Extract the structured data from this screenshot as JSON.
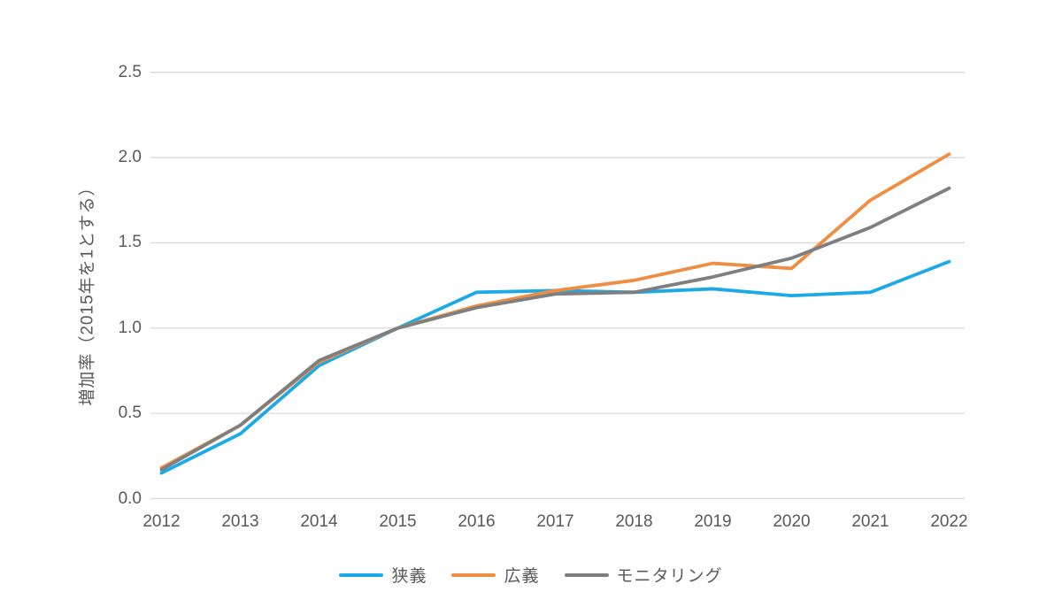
{
  "chart_data": {
    "type": "line",
    "title": "",
    "xlabel": "",
    "ylabel": "増加率（2015年を1とする）",
    "categories": [
      "2012",
      "2013",
      "2014",
      "2015",
      "2016",
      "2017",
      "2018",
      "2019",
      "2020",
      "2021",
      "2022"
    ],
    "series": [
      {
        "key": "narrow",
        "name": "狭義",
        "color": "#1CA9E8",
        "values": [
          0.15,
          0.38,
          0.78,
          1.0,
          1.21,
          1.22,
          1.21,
          1.23,
          1.19,
          1.21,
          1.39
        ]
      },
      {
        "key": "broad",
        "name": "広義",
        "color": "#EF8E42",
        "values": [
          0.18,
          0.43,
          0.8,
          1.0,
          1.13,
          1.22,
          1.28,
          1.38,
          1.35,
          1.75,
          2.02
        ]
      },
      {
        "key": "monitoring",
        "name": "モニタリング",
        "color": "#7F7F7F",
        "values": [
          0.17,
          0.43,
          0.81,
          1.0,
          1.12,
          1.2,
          1.21,
          1.3,
          1.41,
          1.59,
          1.82
        ]
      }
    ],
    "ylim": [
      0,
      2.5
    ],
    "yticks": [
      0.0,
      0.5,
      1.0,
      1.5,
      2.0,
      2.5
    ],
    "ytick_labels": [
      "0.0",
      "0.5",
      "1.0",
      "1.5",
      "2.0",
      "2.5"
    ],
    "grid": true,
    "legend_position": "bottom"
  },
  "colors": {
    "background": "#FFFFFF",
    "gridline": "#D9D9D9",
    "tick_text": "#595959"
  }
}
